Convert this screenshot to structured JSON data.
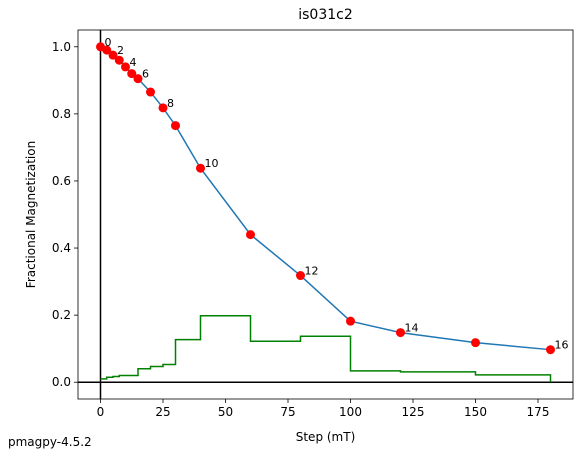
{
  "chart_data": {
    "type": "line",
    "title": "is031c2",
    "xlabel": "Step (mT)",
    "ylabel": "Fractional Magnetization",
    "x": [
      0,
      2.5,
      5,
      7.5,
      10,
      12.5,
      15,
      20,
      25,
      30,
      40,
      60,
      80,
      100,
      120,
      150,
      180
    ],
    "series": [
      {
        "color": "#1f77b4",
        "marker_color": "#ff0000",
        "values": [
          1.0,
          0.99,
          0.975,
          0.96,
          0.94,
          0.92,
          0.905,
          0.865,
          0.818,
          0.765,
          0.638,
          0.44,
          0.318,
          0.182,
          0.148,
          0.118,
          0.097
        ],
        "point_labels": [
          0,
          null,
          2,
          null,
          4,
          null,
          6,
          null,
          8,
          null,
          10,
          null,
          12,
          null,
          14,
          null,
          16
        ]
      },
      {
        "color": "#008000",
        "drawstyle": "steps-post",
        "values": [
          0.01,
          0.015,
          0.017,
          0.02,
          0.02,
          0.02,
          0.04,
          0.047,
          0.053,
          0.127,
          0.198,
          0.122,
          0.137,
          0.034,
          0.031,
          0.022,
          0
        ]
      }
    ],
    "xlim": [
      -9,
      189
    ],
    "ylim": [
      -0.05,
      1.05
    ],
    "xticks": [
      0,
      25,
      50,
      75,
      100,
      125,
      150,
      175
    ],
    "yticks": [
      {
        "value": 0,
        "label": "0.0"
      },
      0.2,
      0.4,
      0.6,
      0.8,
      {
        "value": 1,
        "label": "1.0"
      }
    ],
    "footer": "pmagpy-4.5.2"
  }
}
